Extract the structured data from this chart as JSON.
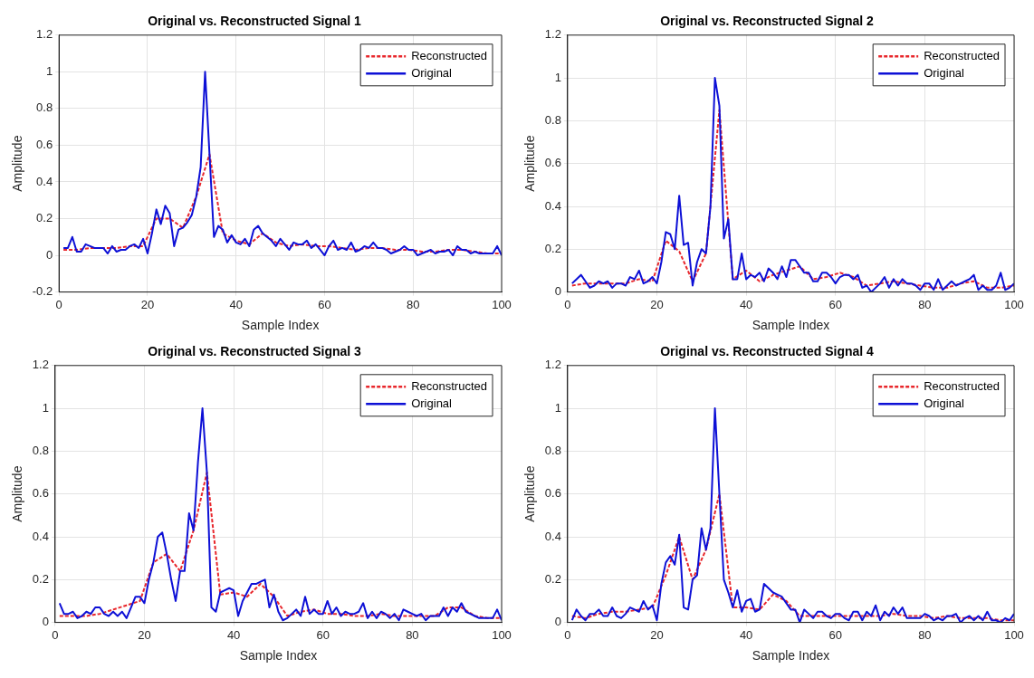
{
  "chart_data": [
    {
      "type": "line",
      "title": "Original vs. Reconstructed Signal 1",
      "xlabel": "Sample Index",
      "ylabel": "Amplitude",
      "xlim": [
        0,
        100
      ],
      "xticks": [
        0,
        20,
        40,
        60,
        80,
        100
      ],
      "ylim": [
        -0.2,
        1.2
      ],
      "yticks": [
        -0.2,
        0,
        0.2,
        0.4,
        0.6,
        0.8,
        1,
        1.2
      ],
      "grid": true,
      "legend": "top right",
      "series": [
        {
          "name": "Reconstructed",
          "color": "#e8262b",
          "line_style": "dashed",
          "x": [
            1,
            4,
            7,
            10,
            13,
            16,
            19,
            22,
            25,
            28,
            31,
            34,
            37,
            40,
            43,
            46,
            49,
            52,
            55,
            58,
            61,
            64,
            67,
            70,
            73,
            76,
            79,
            82,
            85,
            88,
            91,
            94,
            97,
            100
          ],
          "values": [
            0.03,
            0.03,
            0.04,
            0.04,
            0.04,
            0.05,
            0.05,
            0.2,
            0.2,
            0.15,
            0.32,
            0.55,
            0.12,
            0.08,
            0.06,
            0.12,
            0.07,
            0.05,
            0.06,
            0.05,
            0.05,
            0.04,
            0.03,
            0.04,
            0.04,
            0.03,
            0.03,
            0.02,
            0.02,
            0.03,
            0.03,
            0.02,
            0.01,
            0.01
          ]
        },
        {
          "name": "Original",
          "color": "#0d10d6",
          "line_style": "solid",
          "x": [
            1,
            2,
            3,
            4,
            5,
            6,
            7,
            8,
            9,
            10,
            11,
            12,
            13,
            14,
            15,
            16,
            17,
            18,
            19,
            20,
            21,
            22,
            23,
            24,
            25,
            26,
            27,
            28,
            29,
            30,
            31,
            32,
            33,
            34,
            35,
            36,
            37,
            38,
            39,
            40,
            41,
            42,
            43,
            44,
            45,
            46,
            47,
            48,
            49,
            50,
            51,
            52,
            53,
            54,
            55,
            56,
            57,
            58,
            59,
            60,
            61,
            62,
            63,
            64,
            65,
            66,
            67,
            68,
            69,
            70,
            71,
            72,
            73,
            74,
            75,
            76,
            77,
            78,
            79,
            80,
            81,
            82,
            83,
            84,
            85,
            86,
            87,
            88,
            89,
            90,
            91,
            92,
            93,
            94,
            95,
            96,
            97,
            98,
            99,
            100
          ],
          "values": [
            0.04,
            0.04,
            0.1,
            0.02,
            0.02,
            0.06,
            0.05,
            0.04,
            0.04,
            0.04,
            0.01,
            0.05,
            0.02,
            0.03,
            0.03,
            0.05,
            0.06,
            0.04,
            0.09,
            0.01,
            0.12,
            0.25,
            0.17,
            0.27,
            0.23,
            0.05,
            0.14,
            0.15,
            0.18,
            0.22,
            0.32,
            0.48,
            1,
            0.55,
            0.1,
            0.16,
            0.14,
            0.07,
            0.11,
            0.07,
            0.06,
            0.09,
            0.05,
            0.14,
            0.16,
            0.12,
            0.1,
            0.08,
            0.05,
            0.09,
            0.06,
            0.03,
            0.07,
            0.06,
            0.06,
            0.08,
            0.04,
            0.06,
            0.03,
            0,
            0.05,
            0.08,
            0.03,
            0.04,
            0.03,
            0.07,
            0.02,
            0.03,
            0.05,
            0.04,
            0.07,
            0.04,
            0.04,
            0.03,
            0.01,
            0.02,
            0.03,
            0.05,
            0.03,
            0.03,
            0,
            0.01,
            0.02,
            0.03,
            0.01,
            0.02,
            0.02,
            0.03,
            0,
            0.05,
            0.03,
            0.03,
            0.01,
            0.02,
            0.01,
            0.01,
            0.01,
            0.01,
            0.05,
            0
          ]
        }
      ]
    },
    {
      "type": "line",
      "title": "Original vs. Reconstructed Signal 2",
      "xlabel": "Sample Index",
      "ylabel": "Amplitude",
      "xlim": [
        0,
        100
      ],
      "xticks": [
        0,
        20,
        40,
        60,
        80,
        100
      ],
      "ylim": [
        0,
        1.2
      ],
      "yticks": [
        0,
        0.2,
        0.4,
        0.6,
        0.8,
        1,
        1.2
      ],
      "grid": true,
      "legend": "top right",
      "series": [
        {
          "name": "Reconstructed",
          "color": "#e8262b",
          "line_style": "dashed",
          "x": [
            1,
            4,
            7,
            10,
            13,
            16,
            19,
            22,
            25,
            28,
            31,
            34,
            37,
            40,
            43,
            46,
            49,
            52,
            55,
            58,
            61,
            64,
            67,
            70,
            73,
            76,
            79,
            82,
            85,
            88,
            91,
            94,
            97,
            100
          ],
          "values": [
            0.03,
            0.04,
            0.04,
            0.04,
            0.04,
            0.06,
            0.05,
            0.24,
            0.19,
            0.05,
            0.18,
            0.85,
            0.06,
            0.1,
            0.05,
            0.08,
            0.1,
            0.12,
            0.06,
            0.07,
            0.09,
            0.07,
            0.03,
            0.04,
            0.05,
            0.04,
            0.03,
            0.02,
            0.02,
            0.04,
            0.05,
            0.02,
            0.02,
            0.03
          ]
        },
        {
          "name": "Original",
          "color": "#0d10d6",
          "line_style": "solid",
          "x": [
            1,
            2,
            3,
            4,
            5,
            6,
            7,
            8,
            9,
            10,
            11,
            12,
            13,
            14,
            15,
            16,
            17,
            18,
            19,
            20,
            21,
            22,
            23,
            24,
            25,
            26,
            27,
            28,
            29,
            30,
            31,
            32,
            33,
            34,
            35,
            36,
            37,
            38,
            39,
            40,
            41,
            42,
            43,
            44,
            45,
            46,
            47,
            48,
            49,
            50,
            51,
            52,
            53,
            54,
            55,
            56,
            57,
            58,
            59,
            60,
            61,
            62,
            63,
            64,
            65,
            66,
            67,
            68,
            69,
            70,
            71,
            72,
            73,
            74,
            75,
            76,
            77,
            78,
            79,
            80,
            81,
            82,
            83,
            84,
            85,
            86,
            87,
            88,
            89,
            90,
            91,
            92,
            93,
            94,
            95,
            96,
            97,
            98,
            99,
            100
          ],
          "values": [
            0.04,
            0.06,
            0.08,
            0.05,
            0.02,
            0.03,
            0.05,
            0.04,
            0.05,
            0.02,
            0.04,
            0.04,
            0.03,
            0.07,
            0.06,
            0.1,
            0.04,
            0.05,
            0.07,
            0.04,
            0.14,
            0.28,
            0.27,
            0.2,
            0.45,
            0.22,
            0.23,
            0.03,
            0.14,
            0.2,
            0.18,
            0.4,
            1,
            0.87,
            0.25,
            0.34,
            0.06,
            0.06,
            0.18,
            0.06,
            0.08,
            0.07,
            0.09,
            0.05,
            0.11,
            0.09,
            0.06,
            0.12,
            0.07,
            0.15,
            0.15,
            0.12,
            0.09,
            0.09,
            0.05,
            0.05,
            0.09,
            0.09,
            0.07,
            0.04,
            0.07,
            0.08,
            0.08,
            0.06,
            0.08,
            0.02,
            0.03,
            0,
            0.02,
            0.04,
            0.07,
            0.02,
            0.06,
            0.03,
            0.06,
            0.04,
            0.04,
            0.03,
            0.01,
            0.04,
            0.04,
            0.01,
            0.06,
            0.01,
            0.03,
            0.05,
            0.03,
            0.04,
            0.05,
            0.06,
            0.08,
            0.01,
            0.03,
            0.01,
            0.01,
            0.03,
            0.09,
            0.01,
            0.02,
            0.04
          ]
        }
      ]
    },
    {
      "type": "line",
      "title": "Original vs. Reconstructed Signal 3",
      "xlabel": "Sample Index",
      "ylabel": "Amplitude",
      "xlim": [
        0,
        100
      ],
      "xticks": [
        0,
        20,
        40,
        60,
        80,
        100
      ],
      "ylim": [
        0,
        1.2
      ],
      "yticks": [
        0,
        0.2,
        0.4,
        0.6,
        0.8,
        1,
        1.2
      ],
      "grid": true,
      "legend": "top right",
      "series": [
        {
          "name": "Reconstructed",
          "color": "#e8262b",
          "line_style": "dashed",
          "x": [
            1,
            4,
            7,
            10,
            13,
            16,
            19,
            22,
            25,
            28,
            31,
            34,
            37,
            40,
            43,
            46,
            49,
            52,
            55,
            58,
            61,
            64,
            67,
            70,
            73,
            76,
            79,
            82,
            85,
            88,
            91,
            94,
            97,
            100
          ],
          "values": [
            0.03,
            0.03,
            0.03,
            0.04,
            0.06,
            0.08,
            0.1,
            0.28,
            0.32,
            0.24,
            0.43,
            0.7,
            0.13,
            0.14,
            0.12,
            0.18,
            0.12,
            0.03,
            0.05,
            0.06,
            0.04,
            0.04,
            0.03,
            0.03,
            0.04,
            0.03,
            0.03,
            0.03,
            0.03,
            0.07,
            0.07,
            0.03,
            0.02,
            0.02
          ]
        },
        {
          "name": "Original",
          "color": "#0d10d6",
          "line_style": "solid",
          "x": [
            1,
            2,
            3,
            4,
            5,
            6,
            7,
            8,
            9,
            10,
            11,
            12,
            13,
            14,
            15,
            16,
            17,
            18,
            19,
            20,
            21,
            22,
            23,
            24,
            25,
            26,
            27,
            28,
            29,
            30,
            31,
            32,
            33,
            34,
            35,
            36,
            37,
            38,
            39,
            40,
            41,
            42,
            43,
            44,
            45,
            46,
            47,
            48,
            49,
            50,
            51,
            52,
            53,
            54,
            55,
            56,
            57,
            58,
            59,
            60,
            61,
            62,
            63,
            64,
            65,
            66,
            67,
            68,
            69,
            70,
            71,
            72,
            73,
            74,
            75,
            76,
            77,
            78,
            79,
            80,
            81,
            82,
            83,
            84,
            85,
            86,
            87,
            88,
            89,
            90,
            91,
            92,
            93,
            94,
            95,
            96,
            97,
            98,
            99,
            100
          ],
          "values": [
            0.09,
            0.04,
            0.04,
            0.05,
            0.02,
            0.03,
            0.05,
            0.04,
            0.07,
            0.07,
            0.04,
            0.03,
            0.05,
            0.03,
            0.05,
            0.02,
            0.07,
            0.12,
            0.12,
            0.09,
            0.2,
            0.28,
            0.4,
            0.42,
            0.32,
            0.2,
            0.1,
            0.24,
            0.24,
            0.51,
            0.43,
            0.75,
            1,
            0.7,
            0.07,
            0.05,
            0.14,
            0.15,
            0.16,
            0.15,
            0.03,
            0.1,
            0.14,
            0.18,
            0.18,
            0.19,
            0.2,
            0.07,
            0.13,
            0.05,
            0.01,
            0.02,
            0.04,
            0.06,
            0.03,
            0.12,
            0.04,
            0.06,
            0.04,
            0.04,
            0.1,
            0.04,
            0.07,
            0.03,
            0.05,
            0.04,
            0.04,
            0.05,
            0.09,
            0.02,
            0.05,
            0.02,
            0.05,
            0.04,
            0.02,
            0.04,
            0.01,
            0.06,
            0.05,
            0.04,
            0.03,
            0.04,
            0.01,
            0.03,
            0.03,
            0.03,
            0.07,
            0.03,
            0.07,
            0.05,
            0.09,
            0.05,
            0.04,
            0.03,
            0.02,
            0.02,
            0.02,
            0.02,
            0.06,
            0.01
          ]
        }
      ]
    },
    {
      "type": "line",
      "title": "Original vs. Reconstructed Signal 4",
      "xlabel": "Sample Index",
      "ylabel": "Amplitude",
      "xlim": [
        0,
        100
      ],
      "xticks": [
        0,
        20,
        40,
        60,
        80,
        100
      ],
      "ylim": [
        0,
        1.2
      ],
      "yticks": [
        0,
        0.2,
        0.4,
        0.6,
        0.8,
        1,
        1.2
      ],
      "grid": true,
      "legend": "top right",
      "series": [
        {
          "name": "Reconstructed",
          "color": "#e8262b",
          "line_style": "dashed",
          "x": [
            1,
            4,
            7,
            10,
            13,
            16,
            19,
            22,
            25,
            28,
            31,
            34,
            37,
            40,
            43,
            46,
            49,
            52,
            55,
            58,
            61,
            64,
            67,
            70,
            73,
            76,
            79,
            82,
            85,
            88,
            91,
            94,
            97,
            100
          ],
          "values": [
            0.03,
            0.02,
            0.04,
            0.05,
            0.05,
            0.06,
            0.07,
            0.22,
            0.4,
            0.2,
            0.34,
            0.6,
            0.07,
            0.07,
            0.06,
            0.13,
            0.1,
            0.03,
            0.03,
            0.03,
            0.03,
            0.03,
            0.03,
            0.03,
            0.04,
            0.03,
            0.03,
            0.02,
            0.03,
            0.02,
            0.02,
            0.02,
            0.01,
            0.01
          ]
        },
        {
          "name": "Original",
          "color": "#0d10d6",
          "line_style": "solid",
          "x": [
            1,
            2,
            3,
            4,
            5,
            6,
            7,
            8,
            9,
            10,
            11,
            12,
            13,
            14,
            15,
            16,
            17,
            18,
            19,
            20,
            21,
            22,
            23,
            24,
            25,
            26,
            27,
            28,
            29,
            30,
            31,
            32,
            33,
            34,
            35,
            36,
            37,
            38,
            39,
            40,
            41,
            42,
            43,
            44,
            45,
            46,
            47,
            48,
            49,
            50,
            51,
            52,
            53,
            54,
            55,
            56,
            57,
            58,
            59,
            60,
            61,
            62,
            63,
            64,
            65,
            66,
            67,
            68,
            69,
            70,
            71,
            72,
            73,
            74,
            75,
            76,
            77,
            78,
            79,
            80,
            81,
            82,
            83,
            84,
            85,
            86,
            87,
            88,
            89,
            90,
            91,
            92,
            93,
            94,
            95,
            96,
            97,
            98,
            99,
            100
          ],
          "values": [
            0.01,
            0.06,
            0.03,
            0.01,
            0.04,
            0.04,
            0.06,
            0.03,
            0.03,
            0.07,
            0.03,
            0.02,
            0.04,
            0.07,
            0.06,
            0.05,
            0.1,
            0.06,
            0.08,
            0.01,
            0.18,
            0.28,
            0.31,
            0.27,
            0.41,
            0.07,
            0.06,
            0.2,
            0.22,
            0.44,
            0.34,
            0.44,
            1,
            0.6,
            0.2,
            0.14,
            0.07,
            0.15,
            0.05,
            0.1,
            0.11,
            0.05,
            0.06,
            0.18,
            0.16,
            0.14,
            0.13,
            0.12,
            0.09,
            0.06,
            0.06,
            0,
            0.06,
            0.04,
            0.02,
            0.05,
            0.05,
            0.03,
            0.02,
            0.04,
            0.04,
            0.02,
            0.01,
            0.05,
            0.05,
            0.01,
            0.05,
            0.03,
            0.08,
            0.01,
            0.05,
            0.03,
            0.07,
            0.04,
            0.07,
            0.02,
            0.02,
            0.02,
            0.02,
            0.04,
            0.03,
            0.01,
            0.02,
            0.01,
            0.03,
            0.03,
            0.04,
            0,
            0.02,
            0.03,
            0.01,
            0.03,
            0.01,
            0.05,
            0.01,
            0.01,
            0,
            0.02,
            0.01,
            0.04
          ]
        }
      ]
    }
  ]
}
